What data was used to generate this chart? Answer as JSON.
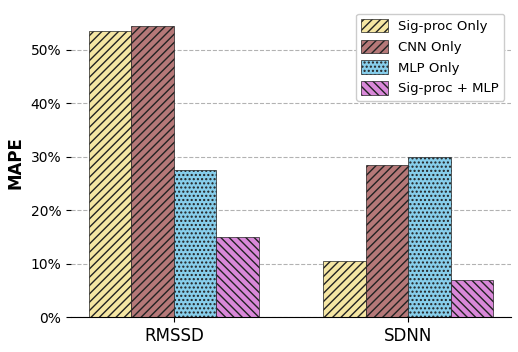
{
  "categories": [
    "RMSSD",
    "SDNN"
  ],
  "series": {
    "Sig-proc Only": [
      53.5,
      10.5
    ],
    "CNN Only": [
      54.5,
      28.5
    ],
    "MLP Only": [
      27.5,
      30.0
    ],
    "Sig-proc + MLP": [
      15.0,
      7.0
    ]
  },
  "colors": {
    "Sig-proc Only": "#f5e6a3",
    "CNN Only": "#b57878",
    "MLP Only": "#87CEEB",
    "Sig-proc + MLP": "#d988d9"
  },
  "hatches": {
    "Sig-proc Only": "////",
    "CNN Only": "////",
    "MLP Only": "....",
    "Sig-proc + MLP": "\\\\\\\\"
  },
  "hatch_colors": {
    "Sig-proc Only": "#222222",
    "CNN Only": "#222222",
    "MLP Only": "#222222",
    "Sig-proc + MLP": "#222222"
  },
  "ylabel": "MAPE",
  "ylim": [
    0,
    58
  ],
  "yticks": [
    0,
    10,
    20,
    30,
    40,
    50
  ],
  "ytick_labels": [
    "0%",
    "10%",
    "20%",
    "30%",
    "40%",
    "50%"
  ],
  "bar_width": 0.12,
  "group_centers": [
    0.18,
    0.84
  ],
  "legend_fontsize": 9.5,
  "axis_fontsize": 12
}
